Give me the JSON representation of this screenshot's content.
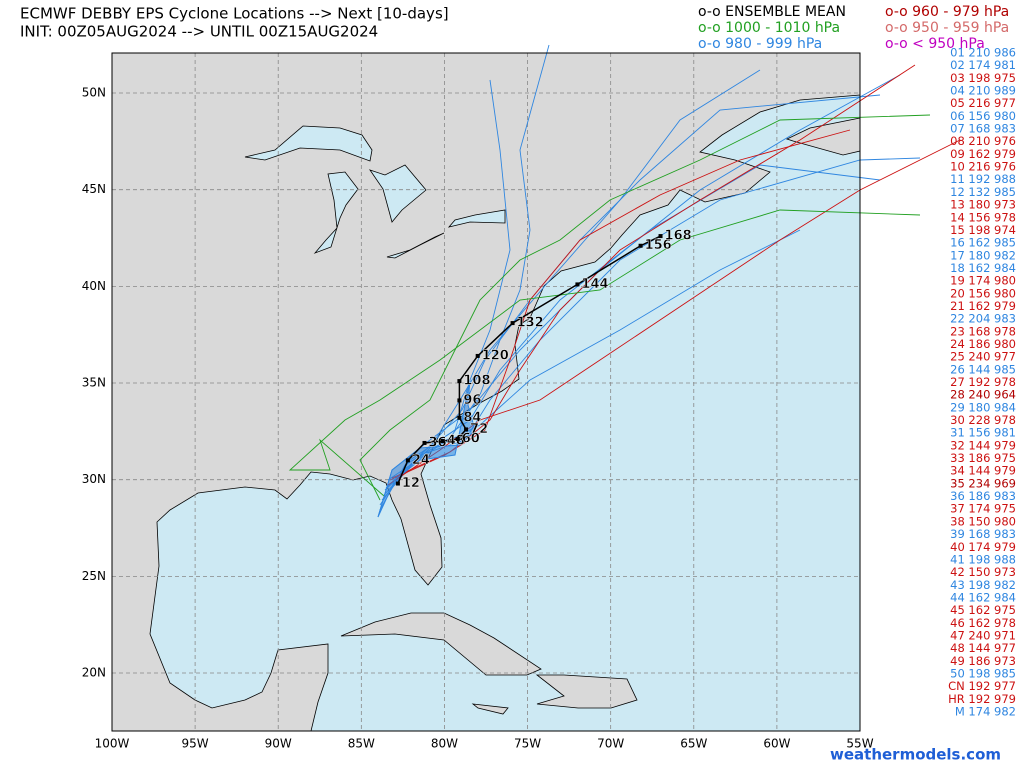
{
  "title": "ECMWF DEBBY EPS Cyclone Locations --> Next [10-days]",
  "init": "INIT: 00Z05AUG2024 --> UNTIL 00Z15AUG2024",
  "legend": [
    {
      "text": "o-o ENSEMBLE MEAN",
      "color": "#000000"
    },
    {
      "text": "o-o 1000 - 1010 hPa",
      "color": "#22a022"
    },
    {
      "text": "o-o 980 - 999 hPa",
      "color": "#2f86e0"
    },
    {
      "text": "o-o 960 - 979 hPa",
      "color": "#b00000"
    },
    {
      "text": "o-o 950 - 959 hPa",
      "color": "#d46a6a"
    },
    {
      "text": "o-o < 950 hPa",
      "color": "#c000c0"
    }
  ],
  "members": [
    {
      "text": "01 210 986",
      "color": "#2f86e0"
    },
    {
      "text": "02 174 981",
      "color": "#2f86e0"
    },
    {
      "text": "03 198 975",
      "color": "#cc1111"
    },
    {
      "text": "04 210 989",
      "color": "#2f86e0"
    },
    {
      "text": "05 216 977",
      "color": "#cc1111"
    },
    {
      "text": "06 156 980",
      "color": "#2f86e0"
    },
    {
      "text": "07 168 983",
      "color": "#2f86e0"
    },
    {
      "text": "08 210 976",
      "color": "#cc1111"
    },
    {
      "text": "09 162 979",
      "color": "#cc1111"
    },
    {
      "text": "10 216 976",
      "color": "#cc1111"
    },
    {
      "text": "11 192 988",
      "color": "#2f86e0"
    },
    {
      "text": "12 132 985",
      "color": "#2f86e0"
    },
    {
      "text": "13 180 973",
      "color": "#cc1111"
    },
    {
      "text": "14 156 978",
      "color": "#cc1111"
    },
    {
      "text": "15 198 974",
      "color": "#cc1111"
    },
    {
      "text": "16 162 985",
      "color": "#2f86e0"
    },
    {
      "text": "17 180 982",
      "color": "#2f86e0"
    },
    {
      "text": "18 162 984",
      "color": "#2f86e0"
    },
    {
      "text": "19 174 980",
      "color": "#cc1111"
    },
    {
      "text": "20 156 980",
      "color": "#cc1111"
    },
    {
      "text": "21 162 979",
      "color": "#cc1111"
    },
    {
      "text": "22 204 983",
      "color": "#2f86e0"
    },
    {
      "text": "23 168 978",
      "color": "#cc1111"
    },
    {
      "text": "24 186 980",
      "color": "#cc1111"
    },
    {
      "text": "25 240 977",
      "color": "#cc1111"
    },
    {
      "text": "26 144 985",
      "color": "#2f86e0"
    },
    {
      "text": "27 192 978",
      "color": "#cc1111"
    },
    {
      "text": "28 240 964",
      "color": "#b00000"
    },
    {
      "text": "29 180 984",
      "color": "#2f86e0"
    },
    {
      "text": "30 228 978",
      "color": "#cc1111"
    },
    {
      "text": "31 156 981",
      "color": "#2f86e0"
    },
    {
      "text": "32 144 979",
      "color": "#cc1111"
    },
    {
      "text": "33 186 975",
      "color": "#cc1111"
    },
    {
      "text": "34 144 979",
      "color": "#cc1111"
    },
    {
      "text": "35 234 969",
      "color": "#b00000"
    },
    {
      "text": "36 186 983",
      "color": "#2f86e0"
    },
    {
      "text": "37 174 975",
      "color": "#cc1111"
    },
    {
      "text": "38 150 980",
      "color": "#cc1111"
    },
    {
      "text": "39 168 983",
      "color": "#2f86e0"
    },
    {
      "text": "40 174 979",
      "color": "#cc1111"
    },
    {
      "text": "41 198 988",
      "color": "#2f86e0"
    },
    {
      "text": "42 150 973",
      "color": "#cc1111"
    },
    {
      "text": "43 198 982",
      "color": "#2f86e0"
    },
    {
      "text": "44 162 984",
      "color": "#2f86e0"
    },
    {
      "text": "45 162 975",
      "color": "#cc1111"
    },
    {
      "text": "46 162 978",
      "color": "#cc1111"
    },
    {
      "text": "47 240 971",
      "color": "#cc1111"
    },
    {
      "text": "48 144 977",
      "color": "#cc1111"
    },
    {
      "text": "49 186 973",
      "color": "#cc1111"
    },
    {
      "text": "50 198 985",
      "color": "#2f86e0"
    },
    {
      "text": "CN 192 977",
      "color": "#cc1111"
    },
    {
      "text": "HR 192 979",
      "color": "#cc1111"
    },
    {
      "text": "M 174 982",
      "color": "#2f86e0"
    }
  ],
  "map": {
    "lon_range": [
      -100,
      -55
    ],
    "lat_range": [
      17,
      52.07
    ],
    "lat_ticks": [
      {
        "value": 50,
        "label": "50N"
      },
      {
        "value": 45,
        "label": "45N"
      },
      {
        "value": 40,
        "label": "40N"
      },
      {
        "value": 35,
        "label": "35N"
      },
      {
        "value": 30,
        "label": "30N"
      },
      {
        "value": 25,
        "label": "25N"
      },
      {
        "value": 20,
        "label": "20N"
      }
    ],
    "lon_ticks": [
      {
        "value": -100,
        "label": "100W"
      },
      {
        "value": -95,
        "label": "95W"
      },
      {
        "value": -90,
        "label": "90W"
      },
      {
        "value": -85,
        "label": "85W"
      },
      {
        "value": -80,
        "label": "80W"
      },
      {
        "value": -75,
        "label": "75W"
      },
      {
        "value": -70,
        "label": "70W"
      },
      {
        "value": -65,
        "label": "65W"
      },
      {
        "value": -60,
        "label": "60W"
      },
      {
        "value": -55,
        "label": "55W"
      }
    ]
  },
  "mean_track": [
    {
      "hour": 12,
      "lon": -82.8,
      "lat": 29.8
    },
    {
      "hour": 24,
      "lon": -82.2,
      "lat": 31.0
    },
    {
      "hour": 36,
      "lon": -81.2,
      "lat": 31.9
    },
    {
      "hour": 48,
      "lon": -80.1,
      "lat": 32.0
    },
    {
      "hour": 60,
      "lon": -79.2,
      "lat": 32.1
    },
    {
      "hour": 72,
      "lon": -78.7,
      "lat": 32.6
    },
    {
      "hour": 84,
      "lon": -79.1,
      "lat": 33.2
    },
    {
      "hour": 96,
      "lon": -79.1,
      "lat": 34.1
    },
    {
      "hour": 108,
      "lon": -79.1,
      "lat": 35.1
    },
    {
      "hour": 120,
      "lon": -78.0,
      "lat": 36.4
    },
    {
      "hour": 132,
      "lon": -75.9,
      "lat": 38.1
    },
    {
      "hour": 144,
      "lon": -72.0,
      "lat": 40.1
    },
    {
      "hour": 156,
      "lon": -68.2,
      "lat": 42.1
    },
    {
      "hour": 168,
      "lon": -67.0,
      "lat": 42.6
    }
  ],
  "credit": "weathermodels.com"
}
